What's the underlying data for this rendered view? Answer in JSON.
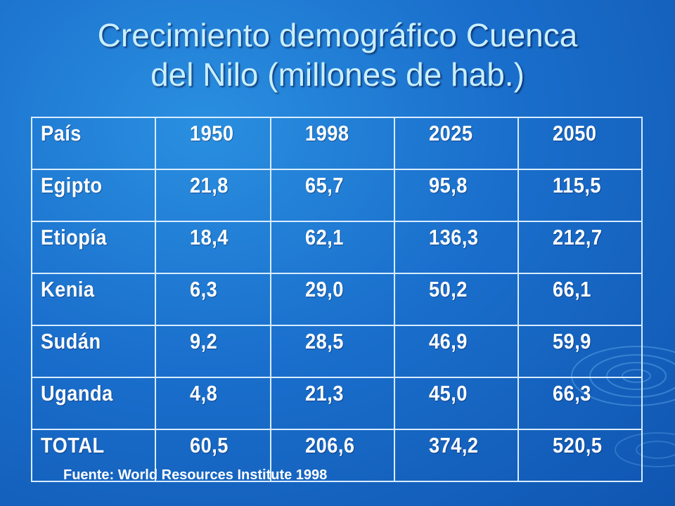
{
  "title": {
    "line1": "Crecimiento demográfico Cuenca",
    "line2": "del Nilo (millones de hab.)"
  },
  "table": {
    "header": [
      "País",
      "1950",
      "1998",
      "2025",
      "2050"
    ],
    "rows": [
      [
        "Egipto",
        "21,8",
        "65,7",
        "95,8",
        "115,5"
      ],
      [
        "Etiopía",
        "18,4",
        "62,1",
        "136,3",
        "212,7"
      ],
      [
        "Kenia",
        "6,3",
        "29,0",
        "50,2",
        "66,1"
      ],
      [
        "Sudán",
        "9,2",
        "28,5",
        "46,9",
        "59,9"
      ],
      [
        "Uganda",
        "4,8",
        "21,3",
        "45,0",
        "66,3"
      ],
      [
        "TOTAL",
        "60,5",
        "206,6",
        "374,2",
        "520,5"
      ]
    ]
  },
  "source": "Fuente:  World Resources Institute 1998",
  "colors": {
    "background": "#1a6fcc",
    "title_text": "#c9efff",
    "table_border": "#d8ecff",
    "table_text": "#ffffff"
  }
}
